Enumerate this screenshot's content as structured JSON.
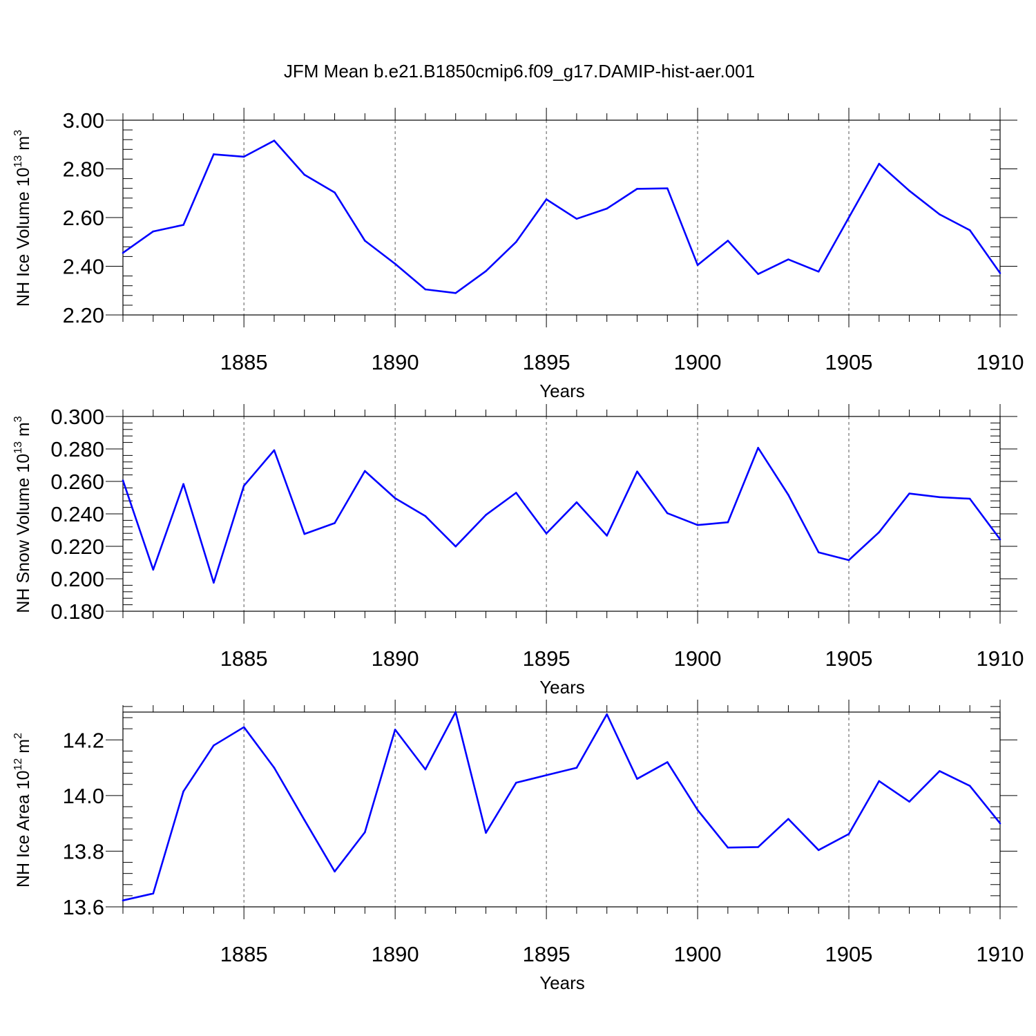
{
  "figure_title": "JFM Mean b.e21.B1850cmip6.f09_g17.DAMIP-hist-aer.001",
  "line_color": "#0000ff",
  "chart_data": [
    {
      "type": "line",
      "title": "JFM Mean b.e21.B1850cmip6.f09_g17.DAMIP-hist-aer.001",
      "xlabel": "Years",
      "ylabel_main": "NH Ice Volume 10",
      "ylabel_exp": "13",
      "ylabel_unit": " m",
      "ylabel_unit_exp": "3",
      "xlim": [
        1881,
        1910
      ],
      "ylim": [
        2.2,
        3.0
      ],
      "y_major_ticks": [
        2.2,
        2.4,
        2.6,
        2.8,
        3.0
      ],
      "y_tick_labels": [
        "2.20",
        "2.40",
        "2.60",
        "2.80",
        "3.00"
      ],
      "y_minor_step": 0.04,
      "x_major_ticks": [
        1885,
        1890,
        1895,
        1900,
        1905,
        1910
      ],
      "x_tick_labels": [
        "1885",
        "1890",
        "1895",
        "1900",
        "1905",
        "1910"
      ],
      "x": [
        1881,
        1882,
        1883,
        1884,
        1885,
        1886,
        1887,
        1888,
        1889,
        1890,
        1891,
        1892,
        1893,
        1894,
        1895,
        1896,
        1897,
        1898,
        1899,
        1900,
        1901,
        1902,
        1903,
        1904,
        1905,
        1906,
        1907,
        1908,
        1909,
        1910
      ],
      "series": [
        {
          "name": "NH Ice Volume",
          "values": [
            2.455,
            2.543,
            2.57,
            2.86,
            2.85,
            2.916,
            2.776,
            2.703,
            2.505,
            2.41,
            2.305,
            2.29,
            2.38,
            2.5,
            2.675,
            2.595,
            2.637,
            2.718,
            2.72,
            2.405,
            2.505,
            2.368,
            2.428,
            2.378,
            2.6,
            2.821,
            2.71,
            2.613,
            2.548,
            2.372
          ]
        }
      ]
    },
    {
      "type": "line",
      "xlabel": "Years",
      "ylabel_main": "NH Snow Volume 10",
      "ylabel_exp": "13",
      "ylabel_unit": " m",
      "ylabel_unit_exp": "3",
      "xlim": [
        1881,
        1910
      ],
      "ylim": [
        0.18,
        0.3
      ],
      "y_major_ticks": [
        0.18,
        0.2,
        0.22,
        0.24,
        0.26,
        0.28,
        0.3
      ],
      "y_tick_labels": [
        "0.180",
        "0.200",
        "0.220",
        "0.240",
        "0.260",
        "0.280",
        "0.300"
      ],
      "y_minor_step": 0.004,
      "x_major_ticks": [
        1885,
        1890,
        1895,
        1900,
        1905,
        1910
      ],
      "x_tick_labels": [
        "1885",
        "1890",
        "1895",
        "1900",
        "1905",
        "1910"
      ],
      "x": [
        1881,
        1882,
        1883,
        1884,
        1885,
        1886,
        1887,
        1888,
        1889,
        1890,
        1891,
        1892,
        1893,
        1894,
        1895,
        1896,
        1897,
        1898,
        1899,
        1900,
        1901,
        1902,
        1903,
        1904,
        1905,
        1906,
        1907,
        1908,
        1909,
        1910
      ],
      "series": [
        {
          "name": "NH Snow Volume",
          "values": [
            0.2606,
            0.2056,
            0.2584,
            0.1976,
            0.2573,
            0.2792,
            0.2276,
            0.2343,
            0.2664,
            0.2496,
            0.2386,
            0.2199,
            0.2393,
            0.253,
            0.2279,
            0.2471,
            0.2266,
            0.2661,
            0.2404,
            0.2331,
            0.2348,
            0.2807,
            0.2517,
            0.2163,
            0.2115,
            0.2287,
            0.2525,
            0.2503,
            0.2493,
            0.2243
          ]
        }
      ]
    },
    {
      "type": "line",
      "xlabel": "Years",
      "ylabel_main": "NH Ice Area 10",
      "ylabel_exp": "12",
      "ylabel_unit": " m",
      "ylabel_unit_exp": "2",
      "xlim": [
        1881,
        1910
      ],
      "ylim": [
        13.6,
        14.3
      ],
      "y_major_ticks": [
        13.6,
        13.8,
        14.0,
        14.2
      ],
      "y_tick_labels": [
        "13.6",
        "13.8",
        "14.0",
        "14.2"
      ],
      "y_minor_step": 0.04,
      "x_major_ticks": [
        1885,
        1890,
        1895,
        1900,
        1905,
        1910
      ],
      "x_tick_labels": [
        "1885",
        "1890",
        "1895",
        "1900",
        "1905",
        "1910"
      ],
      "x": [
        1881,
        1882,
        1883,
        1884,
        1885,
        1886,
        1887,
        1888,
        1889,
        1890,
        1891,
        1892,
        1893,
        1894,
        1895,
        1896,
        1897,
        1898,
        1899,
        1900,
        1901,
        1902,
        1903,
        1904,
        1905,
        1906,
        1907,
        1908,
        1909,
        1910
      ],
      "series": [
        {
          "name": "NH Ice Area",
          "values": [
            13.623,
            13.648,
            14.015,
            14.18,
            14.246,
            14.1,
            13.912,
            13.727,
            13.868,
            14.237,
            14.094,
            14.3,
            13.866,
            14.046,
            14.073,
            14.1,
            14.292,
            14.06,
            14.12,
            13.948,
            13.813,
            13.815,
            13.916,
            13.804,
            13.862,
            14.052,
            13.978,
            14.088,
            14.035,
            13.9
          ]
        }
      ]
    }
  ]
}
